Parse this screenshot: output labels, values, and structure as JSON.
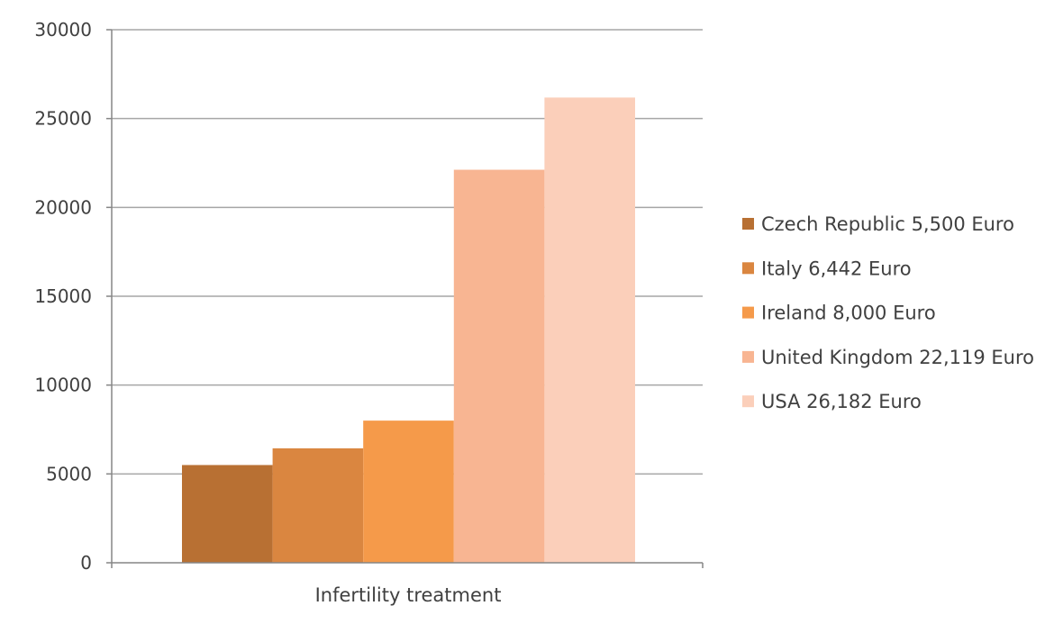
{
  "chart_data": {
    "type": "bar",
    "title": "",
    "xlabel": "",
    "ylabel": "",
    "categories": [
      "Infertility treatment"
    ],
    "series": [
      {
        "name": "Czech Republic 5,500 Euro",
        "values": [
          5500
        ],
        "color": "#b87033"
      },
      {
        "name": "Italy 6,442 Euro",
        "values": [
          6442
        ],
        "color": "#da8640"
      },
      {
        "name": "Ireland 8,000 Euro",
        "values": [
          8000
        ],
        "color": "#f59a4a"
      },
      {
        "name": "United Kingdom 22,119 Euro",
        "values": [
          22119
        ],
        "color": "#f8b592"
      },
      {
        "name": "USA 26,182 Euro",
        "values": [
          26182
        ],
        "color": "#fbcfba"
      }
    ],
    "ylim": [
      0,
      30000
    ],
    "yticks": [
      0,
      5000,
      10000,
      15000,
      20000,
      25000,
      30000
    ],
    "grid": true,
    "legend_position": "right"
  },
  "colors": {
    "gridline": "#a6a6a6",
    "axis": "#868686",
    "text": "#404040"
  }
}
